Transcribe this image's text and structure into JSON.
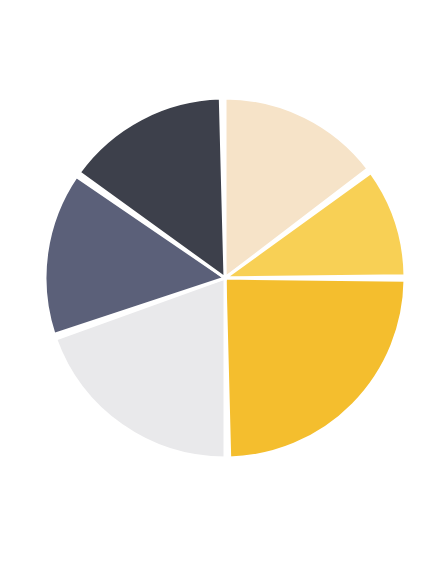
{
  "chart_data": {
    "type": "pie",
    "values": [
      15,
      10,
      25,
      20,
      15,
      15
    ],
    "colors": [
      "#f6e3c8",
      "#f8d055",
      "#f4be2e",
      "#e9e9eb",
      "#5b6079",
      "#3d404b"
    ]
  }
}
